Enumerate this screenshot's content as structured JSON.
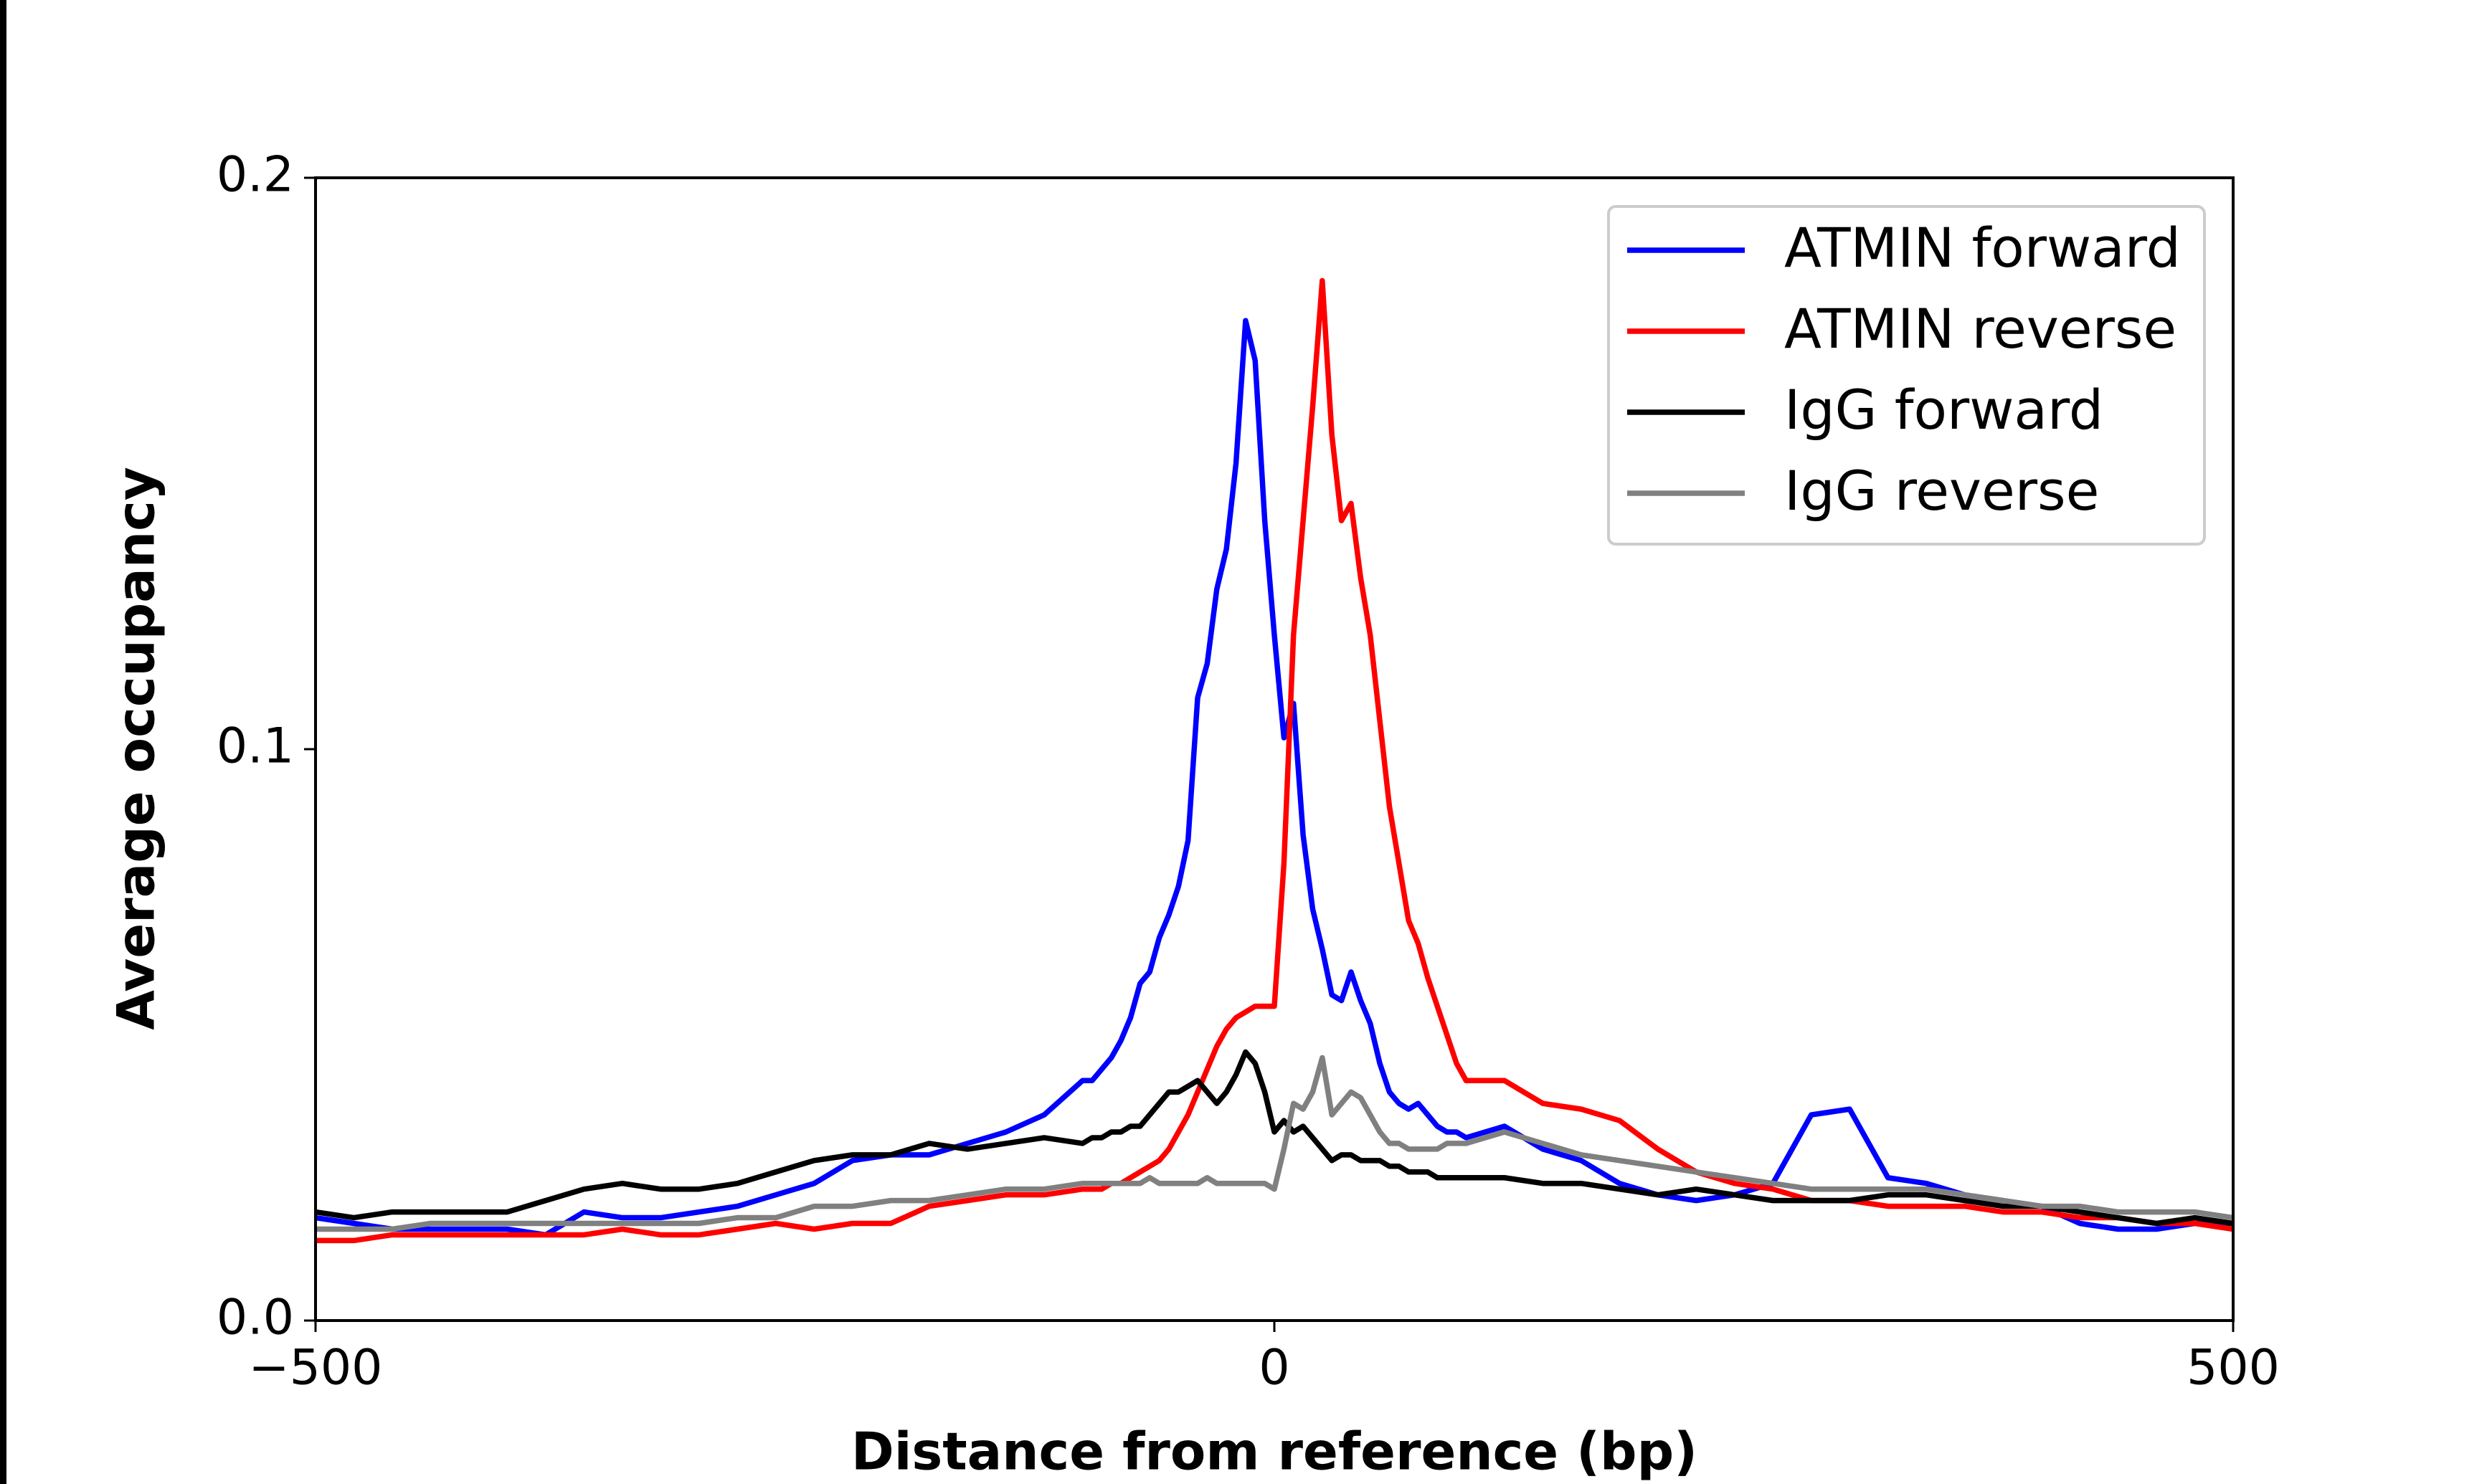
{
  "chart_data": {
    "type": "line",
    "x_label": "Distance from reference (bp)",
    "y_label": "Average occupancy",
    "x": [
      -500,
      -480,
      -460,
      -440,
      -420,
      -400,
      -380,
      -360,
      -340,
      -320,
      -300,
      -280,
      -260,
      -240,
      -220,
      -200,
      -180,
      -160,
      -140,
      -120,
      -100,
      -95,
      -90,
      -85,
      -80,
      -75,
      -70,
      -65,
      -60,
      -55,
      -50,
      -45,
      -40,
      -35,
      -30,
      -25,
      -20,
      -15,
      -10,
      -5,
      0,
      5,
      10,
      15,
      20,
      25,
      30,
      35,
      40,
      45,
      50,
      55,
      60,
      65,
      70,
      75,
      80,
      85,
      90,
      95,
      100,
      120,
      140,
      160,
      180,
      200,
      220,
      240,
      260,
      280,
      300,
      320,
      340,
      360,
      380,
      400,
      420,
      440,
      460,
      480,
      500
    ],
    "series": [
      {
        "name": "ATMIN forward",
        "color": "#0000ff",
        "values": [
          0.018,
          0.017,
          0.016,
          0.016,
          0.016,
          0.016,
          0.015,
          0.019,
          0.018,
          0.018,
          0.019,
          0.02,
          0.022,
          0.024,
          0.028,
          0.029,
          0.029,
          0.031,
          0.033,
          0.036,
          0.042,
          0.042,
          0.044,
          0.046,
          0.049,
          0.053,
          0.059,
          0.061,
          0.067,
          0.071,
          0.076,
          0.084,
          0.109,
          0.115,
          0.128,
          0.135,
          0.15,
          0.175,
          0.168,
          0.14,
          0.12,
          0.102,
          0.108,
          0.085,
          0.072,
          0.065,
          0.057,
          0.056,
          0.061,
          0.056,
          0.052,
          0.045,
          0.04,
          0.038,
          0.037,
          0.038,
          0.036,
          0.034,
          0.033,
          0.033,
          0.032,
          0.034,
          0.03,
          0.028,
          0.024,
          0.022,
          0.021,
          0.022,
          0.024,
          0.036,
          0.037,
          0.025,
          0.024,
          0.022,
          0.021,
          0.02,
          0.017,
          0.016,
          0.016,
          0.017,
          0.017
        ]
      },
      {
        "name": "ATMIN reverse",
        "color": "#ff0000",
        "values": [
          0.014,
          0.014,
          0.015,
          0.015,
          0.015,
          0.015,
          0.015,
          0.015,
          0.016,
          0.015,
          0.015,
          0.016,
          0.017,
          0.016,
          0.017,
          0.017,
          0.02,
          0.021,
          0.022,
          0.022,
          0.023,
          0.023,
          0.023,
          0.024,
          0.024,
          0.025,
          0.026,
          0.027,
          0.028,
          0.03,
          0.033,
          0.036,
          0.04,
          0.044,
          0.048,
          0.051,
          0.053,
          0.054,
          0.055,
          0.055,
          0.055,
          0.08,
          0.12,
          0.14,
          0.16,
          0.182,
          0.155,
          0.14,
          0.143,
          0.13,
          0.12,
          0.105,
          0.09,
          0.08,
          0.07,
          0.066,
          0.06,
          0.055,
          0.05,
          0.045,
          0.042,
          0.042,
          0.038,
          0.037,
          0.035,
          0.03,
          0.026,
          0.024,
          0.023,
          0.021,
          0.021,
          0.02,
          0.02,
          0.02,
          0.019,
          0.019,
          0.018,
          0.018,
          0.017,
          0.017,
          0.016
        ]
      },
      {
        "name": "IgG forward",
        "color": "#000000",
        "values": [
          0.019,
          0.018,
          0.019,
          0.019,
          0.019,
          0.019,
          0.021,
          0.023,
          0.024,
          0.023,
          0.023,
          0.024,
          0.026,
          0.028,
          0.029,
          0.029,
          0.031,
          0.03,
          0.031,
          0.032,
          0.031,
          0.032,
          0.032,
          0.033,
          0.033,
          0.034,
          0.034,
          0.036,
          0.038,
          0.04,
          0.04,
          0.041,
          0.042,
          0.04,
          0.038,
          0.04,
          0.043,
          0.047,
          0.045,
          0.04,
          0.033,
          0.035,
          0.033,
          0.034,
          0.032,
          0.03,
          0.028,
          0.029,
          0.029,
          0.028,
          0.028,
          0.028,
          0.027,
          0.027,
          0.026,
          0.026,
          0.026,
          0.025,
          0.025,
          0.025,
          0.025,
          0.025,
          0.024,
          0.024,
          0.023,
          0.022,
          0.023,
          0.022,
          0.021,
          0.021,
          0.021,
          0.022,
          0.022,
          0.021,
          0.02,
          0.02,
          0.019,
          0.018,
          0.017,
          0.018,
          0.017
        ]
      },
      {
        "name": "IgG reverse",
        "color": "#808080",
        "values": [
          0.016,
          0.016,
          0.016,
          0.017,
          0.017,
          0.017,
          0.017,
          0.017,
          0.017,
          0.017,
          0.017,
          0.018,
          0.018,
          0.02,
          0.02,
          0.021,
          0.021,
          0.022,
          0.023,
          0.023,
          0.024,
          0.024,
          0.024,
          0.024,
          0.024,
          0.024,
          0.024,
          0.025,
          0.024,
          0.024,
          0.024,
          0.024,
          0.024,
          0.025,
          0.024,
          0.024,
          0.024,
          0.024,
          0.024,
          0.024,
          0.023,
          0.03,
          0.038,
          0.037,
          0.04,
          0.046,
          0.036,
          0.038,
          0.04,
          0.039,
          0.036,
          0.033,
          0.031,
          0.031,
          0.03,
          0.03,
          0.03,
          0.03,
          0.031,
          0.031,
          0.031,
          0.033,
          0.031,
          0.029,
          0.028,
          0.027,
          0.026,
          0.025,
          0.024,
          0.023,
          0.023,
          0.023,
          0.023,
          0.022,
          0.021,
          0.02,
          0.02,
          0.019,
          0.019,
          0.019,
          0.018
        ]
      }
    ],
    "xlim": [
      -500,
      500
    ],
    "xticks": [
      {
        "value": -500,
        "label": "−500"
      },
      0,
      500
    ],
    "ylim": [
      0,
      0.2
    ],
    "yticks": [
      {
        "value": 0,
        "label": "0.0"
      },
      0.1,
      0.2
    ],
    "legend": "upper right"
  }
}
